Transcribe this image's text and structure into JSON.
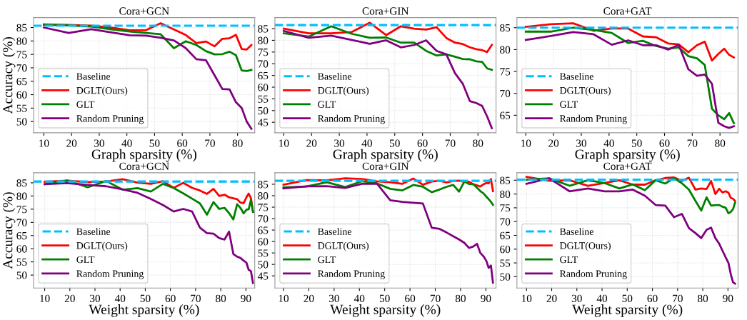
{
  "chart_data": [
    {
      "type": "line",
      "title": "Cora+GCN",
      "xlabel": "Graph sparsity (%)",
      "ylabel": "Accuracy (%)",
      "grid": true,
      "legend": "bottom left",
      "x": [
        10,
        19,
        27.1,
        34.4,
        41,
        46.9,
        52.2,
        57,
        61.3,
        65.1,
        68.6,
        71.7,
        74.5,
        77.1,
        79.4,
        81.5,
        83.3,
        85
      ],
      "xlim": [
        6.3,
        86.2
      ],
      "xticks": [
        10,
        20,
        30,
        40,
        50,
        60,
        70,
        80
      ],
      "ylim": [
        45.8,
        88.7
      ],
      "yticks": [
        50,
        55,
        60,
        65,
        70,
        75,
        80,
        85
      ],
      "ref_lines": [
        {
          "axis": "y",
          "value": 85.7,
          "label": "Baseline",
          "color": "#00bfff",
          "line_style": "dashed"
        }
      ],
      "series": [
        {
          "name": "DGLT(Ours)",
          "color": "#ff0000",
          "values": [
            86.2,
            86,
            85.7,
            85,
            84,
            84,
            86.6,
            84.3,
            82.2,
            79.2,
            79.8,
            78,
            80.8,
            81,
            82.3,
            77,
            76.8,
            78.5
          ]
        },
        {
          "name": "GLT",
          "color": "#008000",
          "values": [
            86,
            85.8,
            85.4,
            84.3,
            83.5,
            83,
            82.5,
            77.3,
            79.9,
            78.5,
            76.2,
            75,
            75.1,
            76,
            74.7,
            69,
            68.8,
            69.2
          ]
        },
        {
          "name": "Random Pruning",
          "color": "#800080",
          "values": [
            85,
            83,
            84.4,
            83.2,
            82.1,
            82,
            81.2,
            80.2,
            77.3,
            73.2,
            72.8,
            67.2,
            62.1,
            62,
            57.2,
            55,
            50,
            47.3
          ]
        }
      ]
    },
    {
      "type": "line",
      "title": "Cora+GIN",
      "xlabel": "Graph sparsity (%)",
      "grid": true,
      "legend": "bottom left",
      "x": [
        10,
        19,
        27.1,
        34.4,
        41,
        46.9,
        52.2,
        57,
        61.3,
        65.1,
        68.6,
        71.7,
        74.5,
        77.1,
        79.4,
        81.5,
        83.3,
        85
      ],
      "xlim": [
        6.8,
        86.5
      ],
      "xticks": [
        10,
        20,
        30,
        40,
        50,
        60,
        70,
        80
      ],
      "ylim": [
        40.5,
        89.7
      ],
      "yticks": [
        45,
        50,
        55,
        60,
        65,
        70,
        75,
        80,
        85
      ],
      "ref_lines": [
        {
          "axis": "y",
          "value": 86.5,
          "label": "Baseline",
          "color": "#00bfff",
          "line_style": "dashed"
        }
      ],
      "series": [
        {
          "name": "DGLT(Ours)",
          "color": "#ff0000",
          "values": [
            85,
            83,
            83,
            83.5,
            87.5,
            82.2,
            86,
            85,
            84.6,
            85.6,
            81,
            79,
            78.4,
            77,
            76.2,
            75.8,
            75,
            78
          ]
        },
        {
          "name": "GLT",
          "color": "#008000",
          "values": [
            83,
            81.6,
            86,
            82.8,
            81.1,
            81.2,
            79,
            79,
            75.5,
            73.5,
            74,
            73,
            72,
            71.9,
            71,
            70.8,
            68,
            67.4
          ]
        },
        {
          "name": "Random Pruning",
          "color": "#800080",
          "values": [
            84,
            81.1,
            82,
            80.2,
            78.5,
            80,
            77,
            78,
            80,
            75.5,
            74,
            66,
            61.5,
            54,
            53.2,
            52,
            47.5,
            42.5
          ]
        }
      ]
    },
    {
      "type": "line",
      "title": "Cora+GAT",
      "xlabel": "Graph sparsity (%)",
      "grid": true,
      "legend": "bottom left",
      "x": [
        10,
        19,
        27.1,
        34.4,
        41,
        46.9,
        52.2,
        57,
        61.3,
        65.1,
        68.6,
        71.7,
        74.5,
        77.1,
        79.4,
        81.5,
        83.3,
        85
      ],
      "xlim": [
        6.8,
        86.5
      ],
      "xticks": [
        10,
        20,
        30,
        40,
        50,
        60,
        70,
        80
      ],
      "ylim": [
        61,
        87.3
      ],
      "yticks": [
        65,
        70,
        75,
        80,
        85
      ],
      "ref_lines": [
        {
          "axis": "y",
          "value": 85,
          "label": "Baseline",
          "color": "#00bfff",
          "line_style": "dashed"
        }
      ],
      "series": [
        {
          "name": "DGLT(Ours)",
          "color": "#ff0000",
          "values": [
            85.2,
            85.8,
            86,
            84.3,
            84.8,
            84.8,
            83,
            82.8,
            81.4,
            81.2,
            79.4,
            81,
            81.8,
            77.5,
            79,
            80.2,
            78.8,
            78.2
          ]
        },
        {
          "name": "GLT",
          "color": "#008000",
          "values": [
            84.1,
            84.1,
            85,
            84.5,
            83.8,
            81.5,
            82,
            80.8,
            80.2,
            80.5,
            78.5,
            78,
            76.5,
            66.5,
            65,
            64.1,
            65.5,
            63.2
          ]
        },
        {
          "name": "Random Pruning",
          "color": "#800080",
          "values": [
            82.2,
            83.1,
            84,
            83.5,
            81.1,
            82.1,
            81,
            81,
            80,
            81.1,
            75.5,
            74,
            74.3,
            72.2,
            63.3,
            62.5,
            62.1,
            62.5
          ]
        }
      ]
    },
    {
      "type": "line",
      "title": "Cora+GCN",
      "xlabel": "Weight sparsity (%)",
      "ylabel": "Accuracy (%)",
      "grid": true,
      "legend": "bottom left",
      "x": [
        10,
        19,
        27.1,
        34.4,
        41,
        46.9,
        52.2,
        57,
        61.3,
        65.1,
        68.6,
        71.7,
        74.5,
        77.1,
        79.4,
        81.5,
        83.3,
        85,
        86.5,
        87.8,
        89.1,
        90.2,
        91.1,
        92,
        92.8
      ],
      "xlim": [
        5.6,
        93.5
      ],
      "xticks": [
        10,
        20,
        30,
        40,
        50,
        60,
        70,
        80,
        90
      ],
      "ylim": [
        45.1,
        88.8
      ],
      "yticks": [
        50,
        55,
        60,
        65,
        70,
        75,
        80,
        85
      ],
      "ref_lines": [
        {
          "axis": "y",
          "value": 85.5,
          "label": "Baseline",
          "color": "#00bfff",
          "line_style": "dashed"
        }
      ],
      "series": [
        {
          "name": "DGLT(Ours)",
          "color": "#ff0000",
          "values": [
            85.4,
            85.8,
            85.3,
            85.5,
            86.4,
            85.1,
            84.6,
            85.6,
            83.1,
            85,
            83.1,
            82.1,
            80.8,
            82.7,
            80,
            80.5,
            79.5,
            79.1,
            78.8,
            77.5,
            77.3,
            79.5,
            80.9,
            79.2,
            74
          ]
        },
        {
          "name": "GLT",
          "color": "#008000",
          "values": [
            84.5,
            85.9,
            83.3,
            85.7,
            82.4,
            83,
            81.7,
            84.6,
            83,
            81,
            79,
            77.2,
            72.9,
            77.7,
            75.1,
            75.5,
            73.5,
            71.1,
            76.9,
            75.5,
            73.4,
            74.8,
            75,
            78.5,
            74
          ]
        },
        {
          "name": "Random Pruning",
          "color": "#800080",
          "values": [
            84.5,
            84.9,
            84.2,
            83.7,
            82.5,
            81.2,
            78.9,
            76.6,
            74.1,
            75.1,
            74.1,
            68,
            65.9,
            65.7,
            64,
            63.5,
            66.5,
            58,
            57,
            56.5,
            55.5,
            54.7,
            52,
            51.5,
            47
          ]
        }
      ]
    },
    {
      "type": "line",
      "title": "Cora+GIN",
      "xlabel": "Weight sparsity (%)",
      "grid": true,
      "legend": "bottom left",
      "x": [
        10,
        19,
        27.1,
        34.4,
        41,
        46.9,
        52.2,
        57,
        61.3,
        65.1,
        68.6,
        71.7,
        74.5,
        77.1,
        79.4,
        81.5,
        83.3,
        85,
        86.5,
        87.8,
        89.1,
        90.2,
        91.1,
        92,
        92.8
      ],
      "xlim": [
        6.6,
        94
      ],
      "xticks": [
        10,
        20,
        30,
        40,
        50,
        60,
        70,
        80,
        90
      ],
      "ylim": [
        39.7,
        90
      ],
      "yticks": [
        45,
        50,
        55,
        60,
        65,
        70,
        75,
        80,
        85
      ],
      "ref_lines": [
        {
          "axis": "y",
          "value": 86.5,
          "label": "Baseline",
          "color": "#00bfff",
          "line_style": "dashed"
        }
      ],
      "series": [
        {
          "name": "DGLT(Ours)",
          "color": "#ff0000",
          "values": [
            84.8,
            86.8,
            86.7,
            87.6,
            87.3,
            86.3,
            85.9,
            85.2,
            87.5,
            84.8,
            86.2,
            86.5,
            85.8,
            86.4,
            86.6,
            86,
            86.1,
            85,
            84.5,
            84,
            85,
            85.6,
            85.4,
            87.3,
            82
          ]
        },
        {
          "name": "GLT",
          "color": "#008000",
          "values": [
            83.6,
            84,
            85.9,
            83.8,
            86.3,
            85.4,
            83,
            82.3,
            84.7,
            83.9,
            81.5,
            82.7,
            83.9,
            84.7,
            81.8,
            86.2,
            85.1,
            85,
            83.5,
            82,
            81,
            79.5,
            78.5,
            77.3,
            76
          ]
        },
        {
          "name": "Random Pruning",
          "color": "#800080",
          "values": [
            83.2,
            84.1,
            84.2,
            83.4,
            85.2,
            85.3,
            78,
            77.3,
            76.9,
            76.6,
            66,
            65.5,
            63.9,
            62.3,
            60.9,
            59.4,
            57.2,
            57.8,
            59,
            55,
            53.5,
            51.5,
            48.5,
            49.5,
            42
          ]
        }
      ]
    },
    {
      "type": "line",
      "title": "Cora+GAT",
      "xlabel": "Weight sparsity (%)",
      "grid": true,
      "legend": "bottom left",
      "x": [
        10,
        19,
        27.1,
        34.4,
        41,
        46.9,
        52.2,
        57,
        61.3,
        65.1,
        68.6,
        71.7,
        74.5,
        77.1,
        79.4,
        81.5,
        83.3,
        85,
        86.5,
        87.8,
        89.1,
        90.2,
        91.1,
        92,
        92.8
      ],
      "xlim": [
        6.2,
        94
      ],
      "xticks": [
        10,
        20,
        30,
        40,
        50,
        60,
        70,
        80,
        90
      ],
      "ylim": [
        45.9,
        87.7
      ],
      "yticks": [
        50,
        55,
        60,
        65,
        70,
        75,
        80,
        85
      ],
      "ref_lines": [
        {
          "axis": "y",
          "value": 85.2,
          "label": "Baseline",
          "color": "#00bfff",
          "line_style": "dashed"
        }
      ],
      "series": [
        {
          "name": "DGLT(Ours)",
          "color": "#ff0000",
          "values": [
            86.2,
            84.8,
            85,
            83,
            84,
            85,
            83.4,
            83.4,
            85,
            85.8,
            86,
            84.8,
            85.9,
            81.6,
            82,
            81.8,
            84.7,
            80,
            81.9,
            80.6,
            81,
            80.5,
            78.6,
            78.3,
            77.5
          ]
        },
        {
          "name": "GLT",
          "color": "#008000",
          "values": [
            85.2,
            85.7,
            83,
            85,
            84,
            82,
            83.5,
            81.4,
            85,
            83.8,
            85.8,
            83.9,
            81.6,
            77.5,
            74,
            78.8,
            75.8,
            76,
            76,
            75.4,
            75,
            73,
            73.5,
            74.5,
            76.8
          ]
        },
        {
          "name": "Random Pruning",
          "color": "#800080",
          "values": [
            83.7,
            85.7,
            81,
            82,
            81,
            81,
            81.6,
            79.4,
            76,
            75.8,
            71.6,
            72.8,
            67.6,
            65.8,
            64,
            67,
            67.8,
            64,
            62,
            59.5,
            57,
            55,
            51,
            48,
            47.5
          ]
        }
      ]
    }
  ]
}
